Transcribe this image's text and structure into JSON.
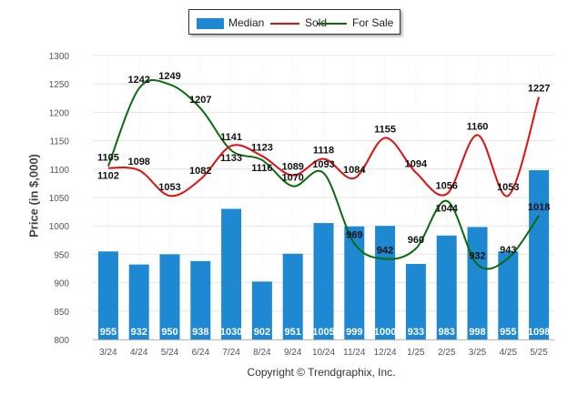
{
  "legend": {
    "median_label": "Median",
    "sold_label": "Sold",
    "for_sale_label": "For Sale"
  },
  "copyright": "Copyright © Trendgraphix, Inc.",
  "colors": {
    "median": "#1e88d2",
    "sold": "#e01010",
    "for_sale": "#0a6b0a"
  },
  "chart_data": {
    "type": "bar",
    "categories": [
      "3/24",
      "4/24",
      "5/24",
      "6/24",
      "7/24",
      "8/24",
      "9/24",
      "10/24",
      "11/24",
      "12/24",
      "1/25",
      "2/25",
      "3/25",
      "4/25",
      "5/25"
    ],
    "ylabel": "Price (in $,000)",
    "ylim": [
      800,
      1300
    ],
    "yticks": [
      800,
      850,
      900,
      950,
      1000,
      1050,
      1100,
      1150,
      1200,
      1250,
      1300
    ],
    "grid": true,
    "legend_position": "top",
    "series": [
      {
        "name": "Median",
        "type": "bar",
        "values": [
          955,
          932,
          950,
          938,
          1030,
          902,
          951,
          1005,
          999,
          1000,
          933,
          983,
          998,
          955,
          1098
        ]
      },
      {
        "name": "Sold",
        "type": "line",
        "values": [
          1102,
          1098,
          1053,
          1082,
          1141,
          1123,
          1089,
          1118,
          1084,
          1155,
          1094,
          1056,
          1160,
          1053,
          1227
        ]
      },
      {
        "name": "For Sale",
        "type": "line",
        "values": [
          1105,
          1242,
          1249,
          1207,
          1133,
          1116,
          1070,
          1093,
          969,
          942,
          960,
          1044,
          932,
          943,
          1018
        ]
      }
    ]
  }
}
